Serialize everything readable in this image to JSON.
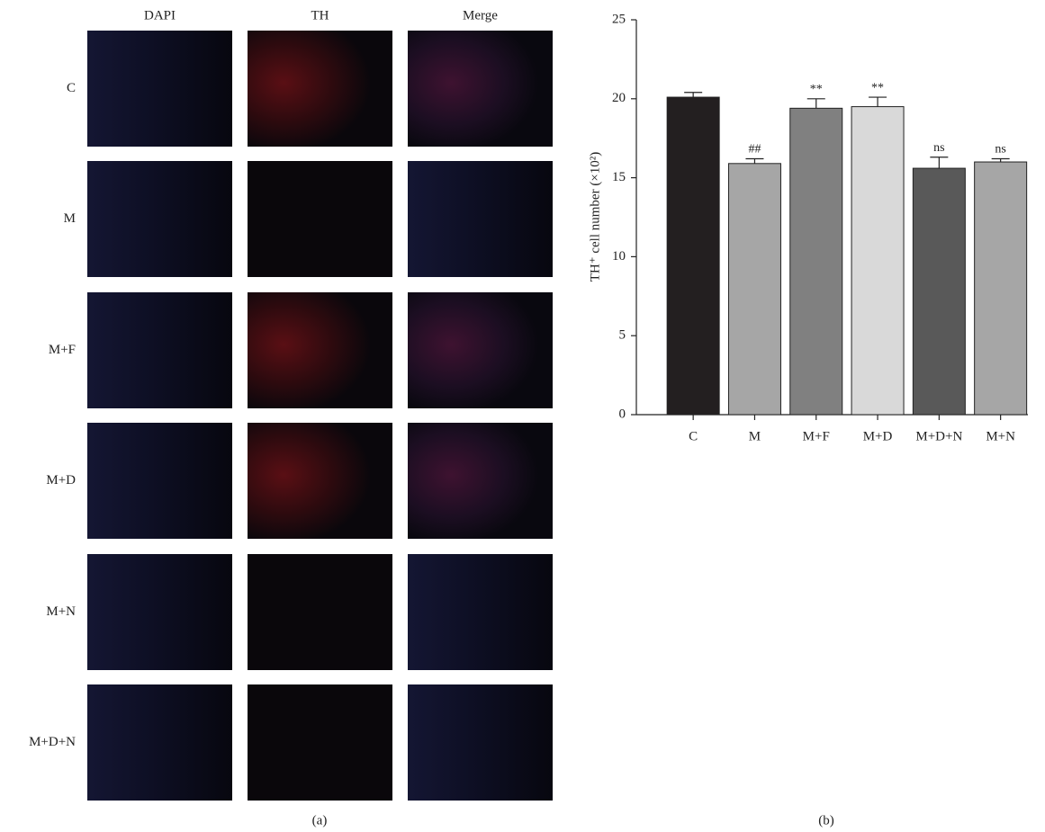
{
  "panel_a": {
    "columns": [
      "DAPI",
      "TH",
      "Merge"
    ],
    "rows": [
      "C",
      "M",
      "M+F",
      "M+D",
      "M+N",
      "M+D+N"
    ],
    "label": "(a)"
  },
  "chart_data": {
    "type": "bar",
    "ylabel": "TH⁺ cell number (×10²)",
    "caption": "(b)",
    "categories": [
      "C",
      "M",
      "M+F",
      "M+D",
      "M+D+N",
      "M+N"
    ],
    "values": [
      20.1,
      15.9,
      19.4,
      19.5,
      15.6,
      16.0
    ],
    "errors": [
      0.3,
      0.3,
      0.6,
      0.6,
      0.7,
      0.2
    ],
    "annotations": [
      null,
      "##",
      "**",
      "**",
      "ns",
      "ns"
    ],
    "colors": [
      "#231f20",
      "#a6a6a6",
      "#808080",
      "#d9d9d9",
      "#595959",
      "#a6a6a6"
    ],
    "ylim": [
      0,
      25
    ],
    "yticks": [
      0,
      5,
      10,
      15,
      20,
      25
    ]
  }
}
